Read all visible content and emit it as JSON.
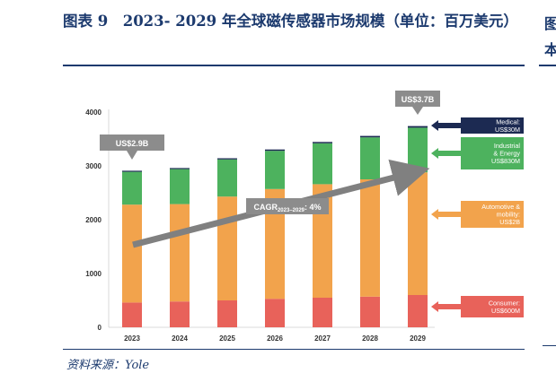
{
  "figure": {
    "title": "图表 9　2023- 2029 年全球磁传感器市场规模（单位：百万美元）",
    "source": "资料来源：Yole",
    "right_edge_text": "图\n本"
  },
  "chart_data": {
    "type": "bar",
    "stacked": true,
    "title": "",
    "xlabel": "",
    "ylabel": "",
    "categories": [
      "2023",
      "2024",
      "2025",
      "2026",
      "2027",
      "2028",
      "2029"
    ],
    "ylim": [
      0,
      4000
    ],
    "yticks": [
      "0",
      "1000",
      "2000",
      "3000",
      "4000"
    ],
    "grid": false,
    "series": [
      {
        "key": "consumer",
        "color": "#e8625a",
        "values": [
          460,
          480,
          500,
          530,
          550,
          570,
          600
        ]
      },
      {
        "key": "automotive",
        "color": "#f2a34c",
        "values": [
          1820,
          1810,
          1930,
          2040,
          2110,
          2180,
          2280
        ]
      },
      {
        "key": "industrial",
        "color": "#4db25e",
        "values": [
          610,
          650,
          690,
          710,
          760,
          780,
          830
        ]
      },
      {
        "key": "medical",
        "color": "#1c2a52",
        "values": [
          20,
          20,
          22,
          25,
          25,
          27,
          30
        ]
      }
    ],
    "legend_labels": [
      {
        "series": "medical",
        "text": "Medical:\nUS$30M"
      },
      {
        "series": "industrial",
        "text": "Industrial\n& Energy\nUS$830M"
      },
      {
        "series": "automotive",
        "text": "Automotive &\nmobility:\nUS$2B"
      },
      {
        "series": "consumer",
        "text": "Consumer:\nUS$600M"
      }
    ],
    "legend_placement": "right",
    "annotations": {
      "start_total": "US$2.9B",
      "end_total": "US$3.7B",
      "cagr": {
        "prefix": "CAGR",
        "sub": "2023–2029",
        "suffix": ": 4%"
      }
    }
  }
}
